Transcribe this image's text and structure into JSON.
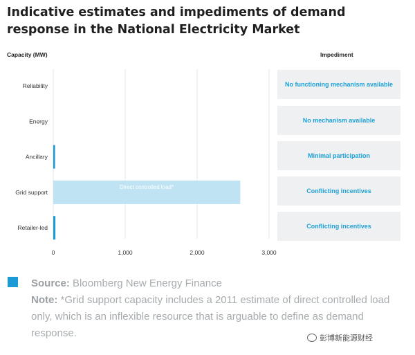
{
  "title": "Indicative estimates and impediments of demand response in the National Electricity Market",
  "headers": {
    "capacity": "Capacity (MW)",
    "impediment": "Impediment"
  },
  "impediments": [
    "No functioning mechanism available",
    "No mechanism available",
    "Minimal participation",
    "Conflicting incentives",
    "Conflicting incentives"
  ],
  "chart_data": {
    "type": "bar",
    "orientation": "horizontal",
    "categories": [
      "Reliability",
      "Energy",
      "Ancillary",
      "Grid support",
      "Retailer-led"
    ],
    "values": [
      0,
      0,
      25,
      2600,
      30
    ],
    "xlim": [
      0,
      3000
    ],
    "xticks": [
      "0",
      "1,000",
      "2,000",
      "3,000"
    ],
    "xlabel": "",
    "ylabel": "Capacity (MW)",
    "grid": true,
    "bar_colors": [
      "#1a9bd7",
      "#1a9bd7",
      "#1a9bd7",
      "#bfe3f2",
      "#1a9bd7"
    ],
    "annotations": [
      {
        "category": "Grid support",
        "text": "Direct controlled load*"
      }
    ]
  },
  "footer": {
    "source_label": "Source:",
    "source_text": "Bloomberg New Energy Finance",
    "note_label": "Note:",
    "note_text": "*Grid support capacity includes a 2011 estimate of direct controlled load only, which is an inflexible resource that is arguable to define as demand response."
  },
  "watermark": "彭博新能源财经"
}
